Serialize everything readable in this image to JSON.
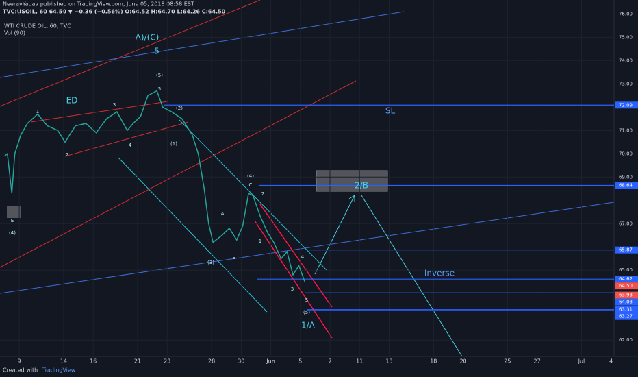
{
  "chart_data": {
    "type": "line",
    "author_line": "NeeravYadav published on TradingView.com, June 05, 2018 08:58 EST",
    "symbol_line": "TVC:USOIL, 60  64.50 ▼ −0.36 (−0.56%)  O:64.52  H:64.70  L:64.26  C:64.50",
    "title": "WTI CRUDE OIL, 60, TVC",
    "indicator": "Vol (90)",
    "footer": "Created with",
    "brand": "TradingView",
    "color": "#26a69a",
    "x": [
      -1,
      -0.8,
      -0.5,
      -0.3,
      0.1,
      0.55,
      1.25,
      1.9,
      2.6,
      3.1,
      3.8,
      4.5,
      5.2,
      5.9,
      6.6,
      7.3,
      7.7,
      8.2,
      8.7,
      9.3,
      9.7,
      10.3,
      11,
      11.7,
      12.1,
      12.5,
      12.8,
      13.1,
      13.7,
      14.2,
      14.7,
      15.1,
      15.5,
      15.8,
      16.3,
      16.8,
      17.2,
      17.7,
      18.1,
      18.5,
      18.9,
      19.3
    ],
    "values": [
      69.9,
      70.0,
      68.3,
      70.0,
      70.8,
      71.3,
      71.7,
      71.2,
      71.0,
      70.5,
      71.2,
      71.3,
      70.9,
      71.5,
      71.8,
      71.0,
      71.3,
      71.6,
      72.5,
      72.7,
      72.0,
      71.8,
      71.5,
      70.8,
      70.0,
      68.5,
      67.0,
      66.2,
      66.5,
      66.8,
      66.3,
      66.9,
      68.3,
      68.2,
      67.3,
      66.6,
      66.2,
      65.5,
      65.8,
      64.8,
      65.2,
      64.5
    ],
    "xlim": [
      -1.3,
      40.2
    ],
    "xticks": [
      {
        "value": 0,
        "label": "9"
      },
      {
        "value": 3,
        "label": "14"
      },
      {
        "value": 5,
        "label": "16"
      },
      {
        "value": 8,
        "label": "21"
      },
      {
        "value": 10,
        "label": "23"
      },
      {
        "value": 13,
        "label": "28"
      },
      {
        "value": 15,
        "label": "30"
      },
      {
        "value": 17,
        "label": "Jun"
      },
      {
        "value": 19,
        "label": "5"
      },
      {
        "value": 21,
        "label": "7"
      },
      {
        "value": 23,
        "label": "11"
      },
      {
        "value": 25,
        "label": "13"
      },
      {
        "value": 28,
        "label": "18"
      },
      {
        "value": 30,
        "label": "20"
      },
      {
        "value": 33,
        "label": "25"
      },
      {
        "value": 35,
        "label": "27"
      },
      {
        "value": 38,
        "label": "Jul"
      },
      {
        "value": 40,
        "label": "4"
      }
    ],
    "ylim": [
      61.3,
      76.6
    ],
    "yticks": [
      {
        "value": 76,
        "label": "76.00"
      },
      {
        "value": 75,
        "label": "75.00"
      },
      {
        "value": 74,
        "label": "74.00"
      },
      {
        "value": 73,
        "label": "73.00"
      },
      {
        "value": 71,
        "label": "71.00"
      },
      {
        "value": 70,
        "label": "70.00"
      },
      {
        "value": 69,
        "label": "69.00"
      },
      {
        "value": 67,
        "label": "67.00"
      },
      {
        "value": 65,
        "label": "65.00"
      },
      {
        "value": 62,
        "label": "62.00"
      }
    ],
    "price_levels": [
      {
        "value": 72.09,
        "color": "#2962ff"
      },
      {
        "value": 68.64,
        "color": "#2962ff"
      },
      {
        "value": 65.87,
        "color": "#2962ff"
      },
      {
        "value": 64.62,
        "color": "#2962ff"
      },
      {
        "value": {
          "value": 64.5,
          "label": "64.50"
        },
        "color": "#ef5350"
      },
      {
        "value": 63.93,
        "color": "#ef5350"
      },
      {
        "value": 64.03,
        "color": "#2962ff"
      },
      {
        "value": 63.31,
        "color": "#2962ff"
      },
      {
        "value": 63.27,
        "color": "#2962ff"
      }
    ],
    "annotations": [
      "A)/(C)",
      "5",
      "(5)",
      "5",
      "ED",
      "1",
      "3",
      "2",
      "4",
      "(2)",
      "(1)",
      "SL",
      "(4)",
      "C",
      "2",
      "A",
      "1",
      "B",
      "(3)",
      "4",
      "3",
      "5",
      "(5)",
      "1/A",
      "2/B",
      "Inverse",
      "E",
      "(4)"
    ]
  }
}
